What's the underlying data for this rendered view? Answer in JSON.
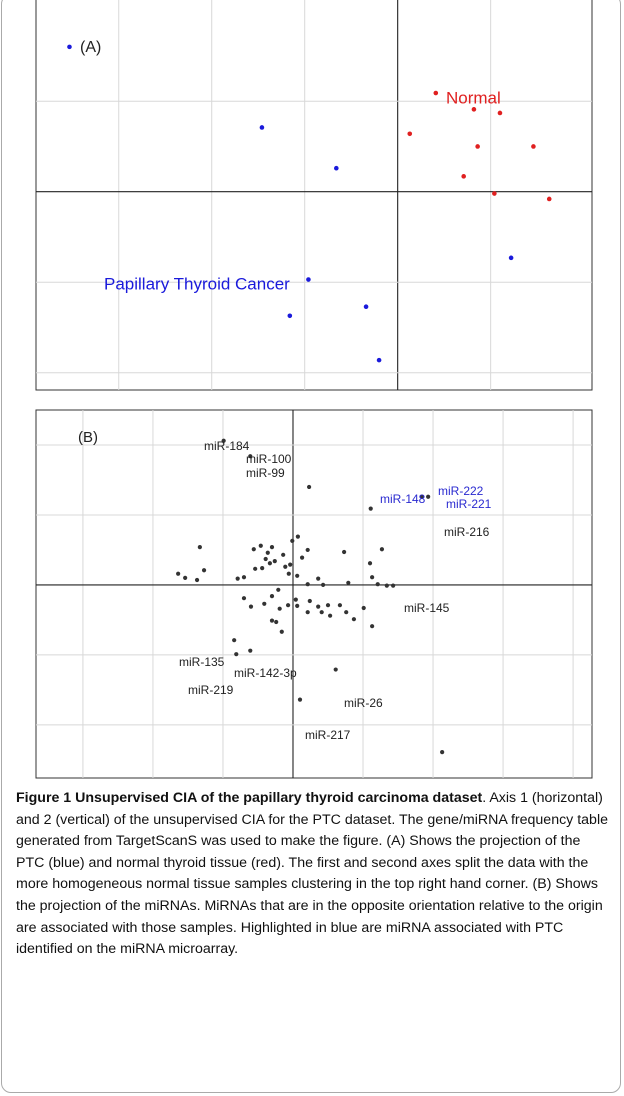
{
  "chart_data": [
    {
      "type": "scatter",
      "panel_label": "(A)",
      "xlim": [
        -3.89,
        2.09
      ],
      "ylim": [
        -2.19,
        2.14
      ],
      "xticks": [
        -3,
        -2,
        -1,
        0,
        1
      ],
      "yticks": [
        -2,
        -1,
        0,
        1
      ],
      "grid": true,
      "series": [
        {
          "name": "Papillary Thyroid Cancer",
          "color": "#1a1adb",
          "x": [
            -3.53,
            -1.46,
            -0.66,
            -0.96,
            -1.16,
            -0.34,
            -0.2,
            1.22
          ],
          "y": [
            1.6,
            0.71,
            0.26,
            -0.97,
            -1.37,
            -1.27,
            -1.86,
            -0.73
          ]
        },
        {
          "name": "Normal",
          "color": "#e02020",
          "x": [
            0.41,
            0.82,
            1.1,
            0.13,
            0.86,
            1.46,
            0.71,
            1.04,
            1.63
          ],
          "y": [
            1.09,
            0.91,
            0.87,
            0.64,
            0.5,
            0.5,
            0.17,
            -0.02,
            -0.08
          ]
        }
      ]
    },
    {
      "type": "scatter",
      "panel_label": "(B)",
      "xlim": [
        -3.67,
        4.27
      ],
      "ylim": [
        -2.76,
        2.5
      ],
      "xticks": [
        -3,
        -2,
        -1,
        0,
        1,
        2,
        3,
        4
      ],
      "yticks": [
        -2,
        -1,
        0,
        1,
        2
      ],
      "grid": true,
      "series": [
        {
          "color": "#333333",
          "x": [
            -0.99,
            -0.61,
            0.23,
            1.11,
            1.84,
            1.93,
            -1.33,
            1.27,
            0.73,
            1.1,
            -1.64,
            -1.54,
            -1.27,
            -1.37,
            -0.7,
            -0.79,
            -0.54,
            -0.44,
            -0.33,
            -0.36,
            -0.39,
            -0.26,
            -0.11,
            -0.04,
            -0.46,
            -0.3,
            -0.56,
            0.07,
            -0.01,
            0.21,
            -0.14,
            0.13,
            -0.06,
            0.06,
            0.21,
            0.36,
            0.43,
            0.79,
            1.13,
            1.21,
            1.34,
            1.43,
            -0.7,
            -0.3,
            -0.21,
            -0.6,
            -0.41,
            0.04,
            0.06,
            -0.07,
            -0.19,
            0.24,
            0.36,
            0.5,
            0.67,
            0.76,
            0.53,
            0.87,
            1.01,
            1.13,
            -0.3,
            -0.24,
            -0.16,
            -0.84,
            -0.81,
            -0.61,
            0.21,
            0.61,
            0.1,
            2.13,
            0.41
          ],
          "y": [
            2.06,
            1.84,
            1.4,
            1.09,
            1.26,
            1.26,
            0.54,
            0.51,
            0.47,
            0.31,
            0.16,
            0.1,
            0.21,
            0.07,
            0.11,
            0.09,
            0.23,
            0.24,
            0.31,
            0.46,
            0.37,
            0.34,
            0.26,
            0.29,
            0.56,
            0.54,
            0.51,
            0.69,
            0.63,
            0.5,
            0.43,
            0.39,
            0.16,
            0.13,
            0.01,
            0.09,
            0.0,
            0.03,
            0.11,
            0.01,
            -0.01,
            -0.01,
            -0.19,
            -0.16,
            -0.07,
            -0.31,
            -0.27,
            -0.21,
            -0.3,
            -0.29,
            -0.34,
            -0.23,
            -0.31,
            -0.29,
            -0.29,
            -0.39,
            -0.44,
            -0.49,
            -0.33,
            -0.59,
            -0.51,
            -0.53,
            -0.67,
            -0.79,
            -0.99,
            -0.94,
            -0.39,
            -1.21,
            -1.64,
            -2.39,
            -0.39
          ]
        }
      ],
      "annotations": [
        {
          "text": "miR-184",
          "color": "#222222"
        },
        {
          "text": "miR-100",
          "color": "#222222"
        },
        {
          "text": "miR-99",
          "color": "#222222"
        },
        {
          "text": "miR-148",
          "color": "#2a2ad0"
        },
        {
          "text": "miR-222",
          "color": "#2a2ad0"
        },
        {
          "text": "miR-221",
          "color": "#2a2ad0"
        },
        {
          "text": "miR-216",
          "color": "#222222"
        },
        {
          "text": "miR-145",
          "color": "#222222"
        },
        {
          "text": "miR-135",
          "color": "#222222"
        },
        {
          "text": "miR-142-3p",
          "color": "#222222"
        },
        {
          "text": "miR-219",
          "color": "#222222"
        },
        {
          "text": "miR-26",
          "color": "#222222"
        },
        {
          "text": "miR-217",
          "color": "#222222"
        }
      ]
    }
  ],
  "caption": {
    "label": "Figure 1",
    "title": "Unsupervised CIA of the papillary thyroid carcinoma dataset",
    "text": ". Axis 1 (horizontal) and 2 (vertical) of the unsupervised CIA for the PTC dataset. The gene/miRNA frequency table generated from TargetScanS was used to make the figure. (A) Shows the projection of the PTC (blue) and normal thyroid tissue (red). The first and second axes split the data with the more homogeneous normal tissue samples clustering in the top right hand corner. (B) Shows the projection of the miRNAs. MiRNAs that are in the opposite orientation relative to the origin are associated with those samples. Highlighted in blue are miRNA associated with PTC identified on the miRNA microarray."
  }
}
